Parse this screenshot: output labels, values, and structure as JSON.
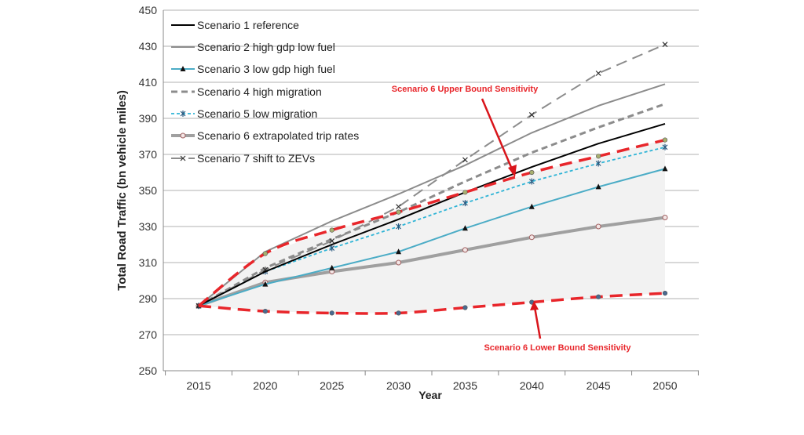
{
  "chart_data": {
    "type": "line",
    "title": "",
    "xlabel": "Year",
    "ylabel": "Total Road Traffic  (bn vehicle miles)",
    "x": [
      2015,
      2020,
      2025,
      2030,
      2035,
      2040,
      2045,
      2050
    ],
    "ylim": [
      250,
      450
    ],
    "yticks": [
      250,
      270,
      290,
      310,
      330,
      350,
      370,
      390,
      410,
      430,
      450
    ],
    "grid": "horizontal",
    "legend": "top-left",
    "series": [
      {
        "name": "Scenario 1 reference",
        "color": "#000000",
        "style": "solid",
        "marker": "none",
        "values": [
          286,
          305,
          320,
          334,
          349,
          363,
          376,
          387
        ]
      },
      {
        "name": "Scenario 2 high gdp low fuel",
        "color": "#8c8c8c",
        "style": "solid",
        "marker": "none",
        "values": [
          286,
          316,
          333,
          348,
          364,
          382,
          397,
          409
        ]
      },
      {
        "name": "Scenario 3 low gdp high fuel",
        "color": "#4bacc6",
        "style": "solid",
        "marker": "triangle",
        "values": [
          286,
          298,
          307,
          316,
          329,
          341,
          352,
          362
        ]
      },
      {
        "name": "Scenario 4 high migration",
        "color": "#8c8c8c",
        "style": "dash",
        "marker": "none",
        "values": [
          286,
          307,
          323,
          338,
          355,
          371,
          385,
          398
        ]
      },
      {
        "name": "Scenario 5 low migration",
        "color": "#2fb4d6",
        "style": "shortdash",
        "marker": "star",
        "values": [
          286,
          305,
          318,
          330,
          343,
          355,
          365,
          374
        ]
      },
      {
        "name": "Scenario 6 extrapolated trip rates",
        "color": "#a0a0a0",
        "style": "thick",
        "marker": "circle",
        "values": [
          286,
          299,
          305,
          310,
          317,
          324,
          330,
          335
        ]
      },
      {
        "name": "Scenario 7 shift to ZEVs",
        "color": "#8c8c8c",
        "style": "longdash",
        "marker": "x",
        "values": [
          286,
          306,
          322,
          341,
          367,
          392,
          415,
          431
        ]
      }
    ],
    "bounds": {
      "upper": {
        "values": [
          286,
          315,
          328,
          338,
          349,
          360,
          369,
          378
        ],
        "color": "#e8262b"
      },
      "lower": {
        "values": [
          286,
          283,
          282,
          282,
          285,
          288,
          291,
          293
        ],
        "color": "#e8262b"
      }
    },
    "annotations": {
      "upper": "Scenario 6 Upper Bound Sensitivity",
      "lower": "Scenario 6 Lower Bound Sensitivity"
    }
  }
}
